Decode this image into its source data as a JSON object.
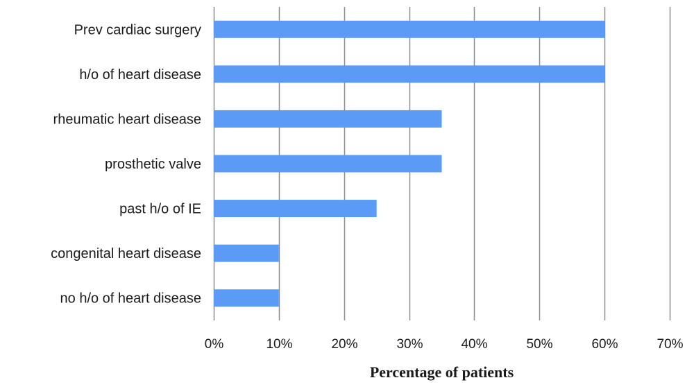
{
  "chart_data": {
    "type": "bar",
    "orientation": "horizontal",
    "categories": [
      "Prev cardiac surgery",
      "h/o of heart disease",
      "rheumatic heart disease",
      "prosthetic valve",
      "past h/o of IE",
      "congenital heart disease",
      "no h/o of heart disease"
    ],
    "values": [
      60,
      60,
      35,
      35,
      25,
      10,
      10
    ],
    "value_unit": "%",
    "xlabel": "Percentage of patients",
    "ylabel": "",
    "xlim": [
      0,
      70
    ],
    "xticks": [
      0,
      10,
      20,
      30,
      40,
      50,
      60,
      70
    ],
    "xtick_labels": [
      "0%",
      "10%",
      "20%",
      "30%",
      "40%",
      "50%",
      "60%",
      "70%"
    ],
    "grid": "vertical",
    "legend": "none",
    "bar_color": "#5b9bf5",
    "grid_color": "#8c8c8c"
  }
}
